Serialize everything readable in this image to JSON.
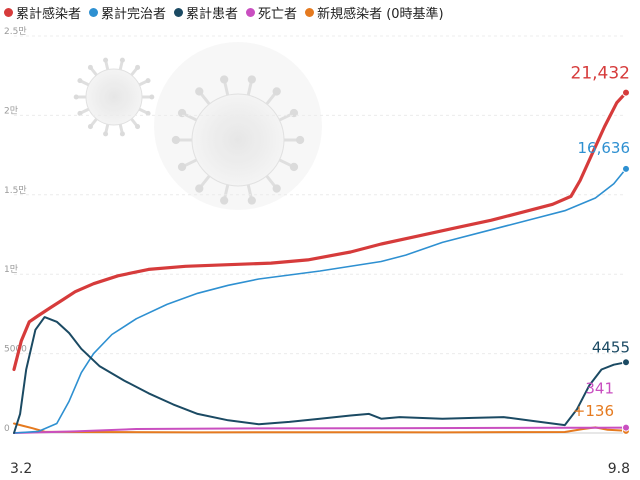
{
  "chart_data": {
    "type": "line",
    "y_ticks": [
      "2.5만",
      "2만",
      "1.5만",
      "1만",
      "5000",
      "0"
    ],
    "x_ticks": [
      "3.2",
      "9.8"
    ],
    "ylim": [
      0,
      25000
    ],
    "grid": true,
    "legend_position": "top-left",
    "series": [
      {
        "name": "累計感染者",
        "color": "#d63b3b",
        "end_label": "21,432",
        "points": [
          [
            0,
            4000
          ],
          [
            0.012,
            5800
          ],
          [
            0.025,
            7000
          ],
          [
            0.04,
            7400
          ],
          [
            0.06,
            7900
          ],
          [
            0.08,
            8400
          ],
          [
            0.1,
            8900
          ],
          [
            0.13,
            9400
          ],
          [
            0.17,
            9900
          ],
          [
            0.22,
            10300
          ],
          [
            0.28,
            10500
          ],
          [
            0.35,
            10600
          ],
          [
            0.42,
            10700
          ],
          [
            0.48,
            10900
          ],
          [
            0.55,
            11400
          ],
          [
            0.6,
            11900
          ],
          [
            0.66,
            12400
          ],
          [
            0.72,
            12900
          ],
          [
            0.78,
            13400
          ],
          [
            0.83,
            13900
          ],
          [
            0.88,
            14400
          ],
          [
            0.91,
            14900
          ],
          [
            0.925,
            15900
          ],
          [
            0.945,
            17600
          ],
          [
            0.965,
            19300
          ],
          [
            0.985,
            20800
          ],
          [
            1,
            21432
          ]
        ]
      },
      {
        "name": "累計完治者",
        "color": "#2e90d1",
        "end_label": "16,636",
        "points": [
          [
            0,
            0
          ],
          [
            0.04,
            100
          ],
          [
            0.07,
            600
          ],
          [
            0.09,
            2000
          ],
          [
            0.11,
            3800
          ],
          [
            0.13,
            5000
          ],
          [
            0.16,
            6200
          ],
          [
            0.2,
            7200
          ],
          [
            0.25,
            8100
          ],
          [
            0.3,
            8800
          ],
          [
            0.35,
            9300
          ],
          [
            0.4,
            9700
          ],
          [
            0.5,
            10200
          ],
          [
            0.6,
            10800
          ],
          [
            0.64,
            11200
          ],
          [
            0.7,
            12000
          ],
          [
            0.78,
            12800
          ],
          [
            0.85,
            13500
          ],
          [
            0.9,
            14000
          ],
          [
            0.95,
            14800
          ],
          [
            0.98,
            15700
          ],
          [
            1,
            16636
          ]
        ]
      },
      {
        "name": "累計患者",
        "color": "#1b4a63",
        "end_label": "4455",
        "points": [
          [
            0,
            0
          ],
          [
            0.01,
            1200
          ],
          [
            0.02,
            4000
          ],
          [
            0.035,
            6500
          ],
          [
            0.05,
            7300
          ],
          [
            0.07,
            7000
          ],
          [
            0.09,
            6300
          ],
          [
            0.11,
            5300
          ],
          [
            0.14,
            4200
          ],
          [
            0.18,
            3300
          ],
          [
            0.22,
            2500
          ],
          [
            0.26,
            1800
          ],
          [
            0.3,
            1200
          ],
          [
            0.35,
            800
          ],
          [
            0.4,
            550
          ],
          [
            0.45,
            700
          ],
          [
            0.5,
            900
          ],
          [
            0.55,
            1100
          ],
          [
            0.58,
            1200
          ],
          [
            0.6,
            900
          ],
          [
            0.63,
            1000
          ],
          [
            0.7,
            900
          ],
          [
            0.75,
            950
          ],
          [
            0.8,
            1000
          ],
          [
            0.85,
            750
          ],
          [
            0.9,
            500
          ],
          [
            0.92,
            1500
          ],
          [
            0.94,
            3000
          ],
          [
            0.96,
            4000
          ],
          [
            0.98,
            4300
          ],
          [
            1,
            4455
          ]
        ]
      },
      {
        "name": "死亡者",
        "color": "#c94fc0",
        "end_label": "341",
        "points": [
          [
            0,
            0
          ],
          [
            0.1,
            100
          ],
          [
            0.2,
            250
          ],
          [
            0.4,
            290
          ],
          [
            0.6,
            300
          ],
          [
            0.8,
            320
          ],
          [
            0.9,
            325
          ],
          [
            0.95,
            330
          ],
          [
            1,
            341
          ]
        ]
      },
      {
        "name": "新規感染者 (0時基準)",
        "color": "#e57a1f",
        "end_label": "+136",
        "points": [
          [
            0,
            600
          ],
          [
            0.015,
            450
          ],
          [
            0.03,
            300
          ],
          [
            0.05,
            80
          ],
          [
            0.1,
            60
          ],
          [
            0.3,
            40
          ],
          [
            0.5,
            50
          ],
          [
            0.7,
            40
          ],
          [
            0.9,
            60
          ],
          [
            0.93,
            250
          ],
          [
            0.95,
            350
          ],
          [
            0.97,
            200
          ],
          [
            1,
            136
          ]
        ]
      }
    ]
  }
}
